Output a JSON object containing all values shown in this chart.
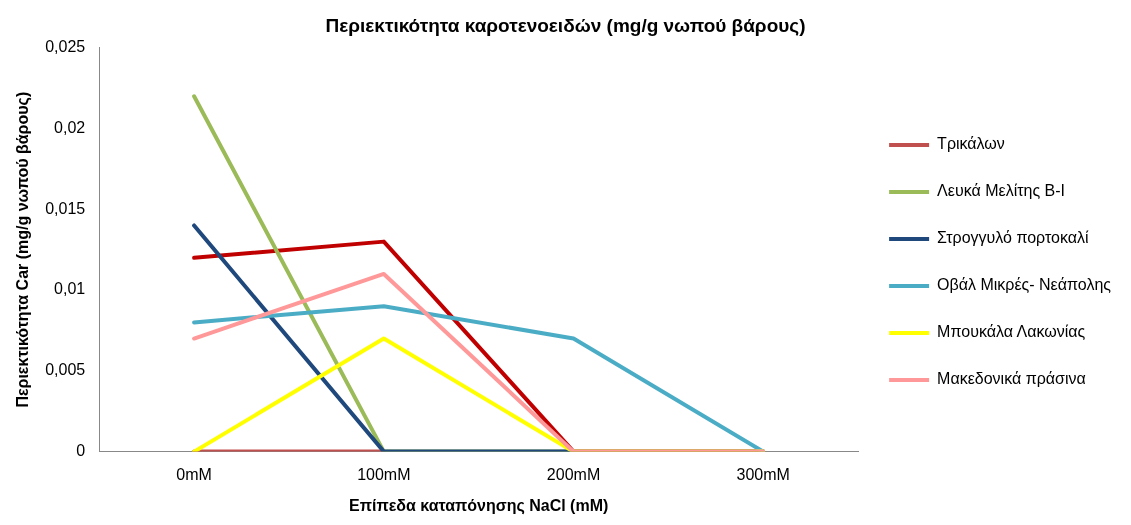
{
  "chart_data": {
    "type": "line",
    "title": "Περιεκτικότητα καροτενοειδών (mg/g νωπού βάρους)",
    "xlabel": "Επίπεδα καταπόνησης NaCl (mM)",
    "ylabel": "Περιεκτικότητα Car (mg/g νωπού βάρους)",
    "categories": [
      "0mM",
      "100mM",
      "200mM",
      "300mM"
    ],
    "series": [
      {
        "color": "#c00000",
        "values": [
          0.012,
          0.013,
          0,
          0
        ]
      },
      {
        "name": "Τρικάλων",
        "color": "#c0504d",
        "values": [
          0,
          0,
          null,
          null
        ]
      },
      {
        "name": "Λευκά Μελίτης B-I",
        "color": "#9bbb59",
        "values": [
          0.022,
          0,
          0,
          0
        ]
      },
      {
        "name": "Στρογγυλό πορτοκαλί",
        "color": "#1f497d",
        "values": [
          0.014,
          0,
          0,
          0
        ]
      },
      {
        "name": "Οβάλ Μικρές- Νεάπολης",
        "color": "#4bacc6",
        "values": [
          0.008,
          0.009,
          0.007,
          0
        ]
      },
      {
        "name": "Μπουκάλα Λακωνίας",
        "color": "#ffff00",
        "values": [
          0,
          0.007,
          0,
          0
        ]
      },
      {
        "name": "Μακεδονικά πράσινα",
        "color": "#ff9999",
        "values": [
          0.007,
          0.011,
          0,
          0
        ]
      }
    ],
    "ylim": [
      0,
      0.025
    ],
    "yticks": [
      0,
      {
        "value": 0.005,
        "label": "0,005"
      },
      {
        "value": 0.01,
        "label": "0,01"
      },
      {
        "value": 0.015,
        "label": "0,015"
      },
      {
        "value": 0.02,
        "label": "0,02"
      },
      {
        "value": 0.025,
        "label": "0,025"
      }
    ],
    "grid": false,
    "legend": "right",
    "marker": "none"
  }
}
